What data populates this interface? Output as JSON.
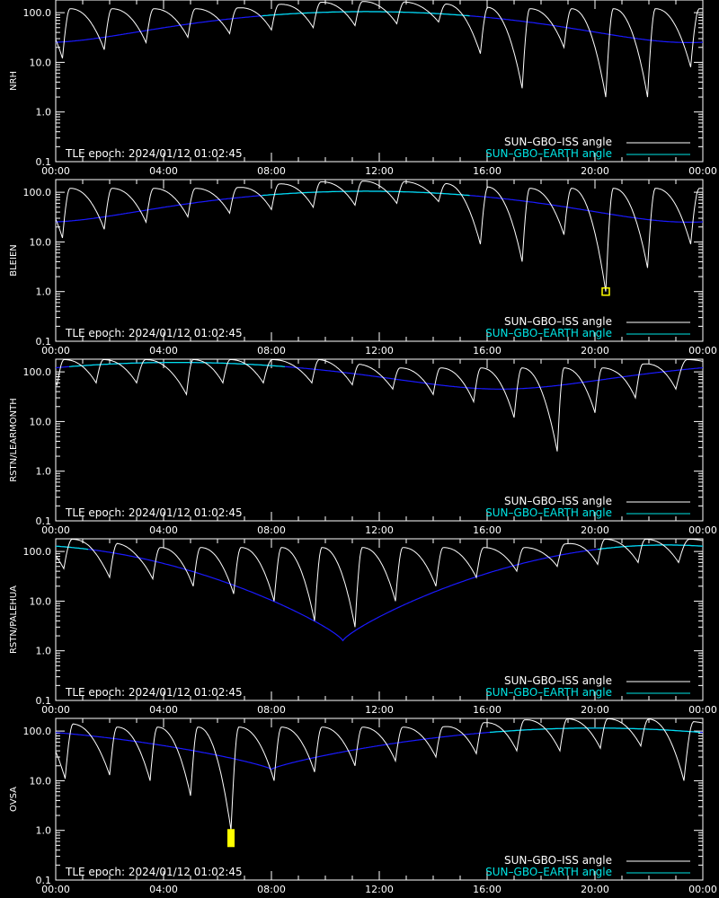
{
  "colors": {
    "background": "#000000",
    "axis": "#ffffff",
    "iss": "#ffffff",
    "earth_sunlit": "#00e5e5",
    "earth_shadow": "#1a1aff",
    "marker": "#ffff00"
  },
  "legend": {
    "iss_label": "SUN–GBO–ISS angle",
    "earth_label": "SUN–GBO–EARTH angle",
    "epoch_text": "TLE epoch: 2024/01/12 01:02:45",
    "placement": "bottom-right"
  },
  "chart_data": [
    {
      "type": "line",
      "ylabel": "NRH",
      "yscale": "log",
      "ylim": [
        0.1,
        180
      ],
      "xlim": [
        0,
        24
      ],
      "yticks": [
        "0.1",
        "1.0",
        "10.0",
        "100.0"
      ],
      "xticks": [
        "00:00",
        "04:00",
        "08:00",
        "12:00",
        "16:00",
        "20:00",
        "00:00"
      ],
      "earth_peak_hour": 11.5,
      "earth_min": 25,
      "earth_max": 105,
      "iss_min_times": [
        0.25,
        1.8,
        3.35,
        4.9,
        6.45,
        8.0,
        9.55,
        11.1,
        12.65,
        14.2,
        15.75,
        17.3,
        18.85,
        20.4,
        21.95,
        23.55
      ],
      "iss_min_values": [
        12,
        18,
        25,
        32,
        38,
        45,
        50,
        55,
        60,
        65,
        15,
        3,
        20,
        2,
        2,
        8
      ],
      "marker": null
    },
    {
      "type": "line",
      "ylabel": "BLEIEN",
      "yscale": "log",
      "ylim": [
        0.1,
        180
      ],
      "xlim": [
        0,
        24
      ],
      "yticks": [
        "0.1",
        "1.0",
        "10.0",
        "100.0"
      ],
      "xticks": [
        "00:00",
        "04:00",
        "08:00",
        "12:00",
        "16:00",
        "20:00",
        "00:00"
      ],
      "earth_peak_hour": 11.5,
      "earth_min": 25,
      "earth_max": 105,
      "iss_min_times": [
        0.25,
        1.8,
        3.35,
        4.9,
        6.45,
        8.0,
        9.55,
        11.1,
        12.65,
        14.2,
        15.75,
        17.3,
        18.85,
        20.4,
        21.95,
        23.55
      ],
      "iss_min_values": [
        12,
        18,
        25,
        32,
        38,
        45,
        50,
        55,
        60,
        65,
        9,
        4,
        14,
        1.0,
        3,
        9
      ],
      "marker": {
        "time": 20.4,
        "value": 1.0,
        "style": "box"
      }
    },
    {
      "type": "line",
      "ylabel": "RSTN/LEARMONTH",
      "yscale": "log",
      "ylim": [
        0.1,
        180
      ],
      "xlim": [
        0,
        24
      ],
      "yticks": [
        "0.1",
        "1.0",
        "10.0",
        "100.0"
      ],
      "xticks": [
        "00:00",
        "04:00",
        "08:00",
        "12:00",
        "16:00",
        "20:00",
        "00:00"
      ],
      "earth_peak_hour": 4.5,
      "earth_min": 45,
      "earth_max": 155,
      "iss_min_times": [
        0.05,
        1.5,
        3.0,
        4.85,
        6.2,
        7.7,
        9.5,
        11.0,
        12.5,
        14.0,
        15.5,
        17.0,
        18.6,
        20.0,
        21.5,
        23.0
      ],
      "iss_min_values": [
        55,
        60,
        60,
        35,
        60,
        60,
        60,
        55,
        45,
        35,
        25,
        12,
        2.5,
        15,
        30,
        45
      ],
      "marker": null
    },
    {
      "type": "line",
      "ylabel": "RSTN/PALEHUA",
      "yscale": "log",
      "ylim": [
        0.1,
        180
      ],
      "xlim": [
        0,
        24
      ],
      "yticks": [
        "0.1",
        "1.0",
        "10.0",
        "100.0"
      ],
      "xticks": [
        "00:00",
        "04:00",
        "08:00",
        "12:00",
        "16:00",
        "20:00",
        "00:00"
      ],
      "earth_peak_hour": 22.5,
      "earth_min": 1.6,
      "earth_max": 135,
      "earth_min_hour": 10.65,
      "iss_min_times": [
        0.3,
        2.0,
        3.6,
        5.1,
        6.6,
        8.1,
        9.6,
        11.1,
        12.6,
        14.1,
        15.6,
        17.1,
        18.6,
        20.1,
        21.6,
        23.1
      ],
      "iss_min_values": [
        45,
        30,
        28,
        20,
        14,
        10,
        4,
        3,
        10,
        20,
        30,
        40,
        50,
        55,
        60,
        60
      ],
      "marker": null
    },
    {
      "type": "line",
      "ylabel": "OVSA",
      "yscale": "log",
      "ylim": [
        0.1,
        180
      ],
      "xlim": [
        0,
        24
      ],
      "yticks": [
        "0.1",
        "1.0",
        "10.0",
        "100.0"
      ],
      "xticks": [
        "00:00",
        "04:00",
        "08:00",
        "12:00",
        "16:00",
        "20:00",
        "00:00"
      ],
      "earth_peak_hour": 20.0,
      "earth_min": 17,
      "earth_max": 115,
      "earth_min_hour": 8.0,
      "iss_min_times": [
        0.35,
        2.0,
        3.5,
        5.0,
        6.5,
        8.1,
        9.6,
        11.1,
        12.6,
        14.1,
        15.6,
        17.1,
        18.7,
        20.2,
        21.7,
        23.3
      ],
      "iss_min_values": [
        11,
        13,
        10,
        5,
        1.0,
        10,
        15,
        20,
        25,
        30,
        35,
        40,
        40,
        45,
        50,
        10
      ],
      "marker": {
        "time": 6.5,
        "value": 0.7,
        "style": "bar"
      }
    }
  ]
}
